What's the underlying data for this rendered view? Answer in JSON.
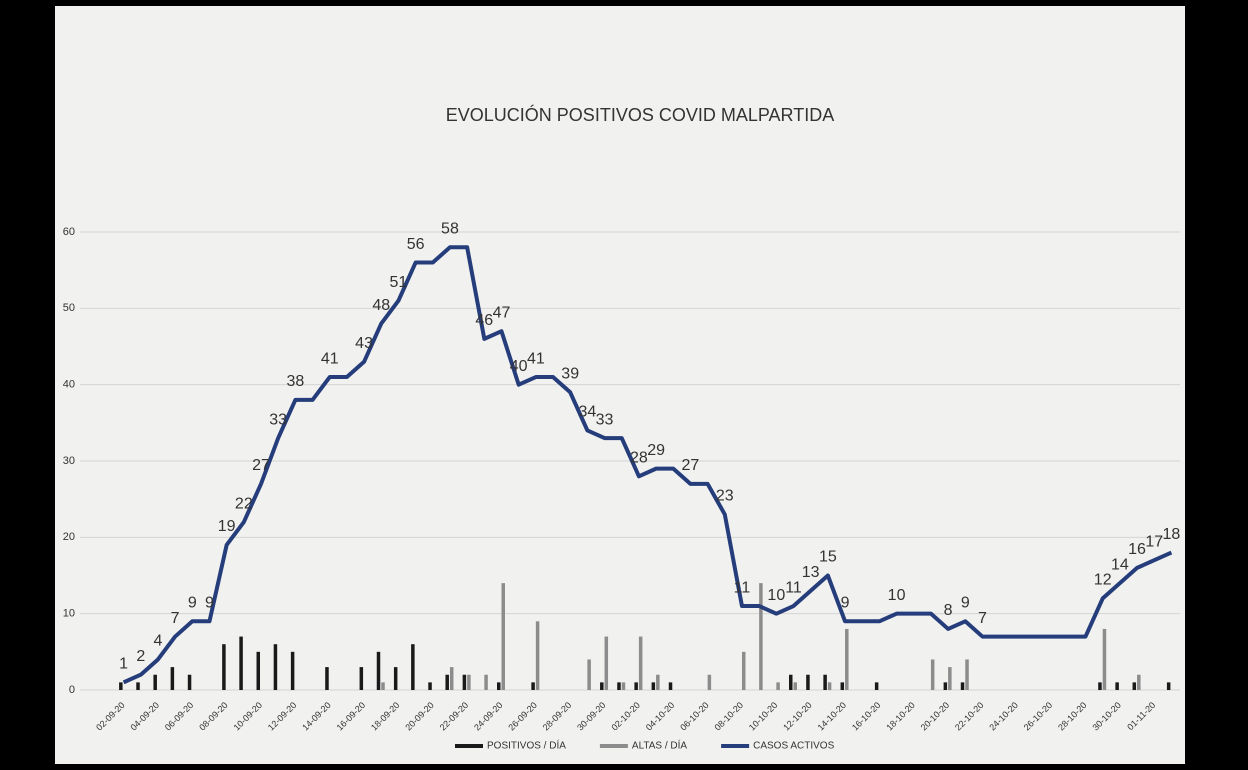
{
  "chart_data": {
    "type": "bar-line",
    "title": "EVOLUCIÓN POSITIVOS COVID MALPARTIDA",
    "categories": [
      "02-09-20",
      null,
      "04-09-20",
      null,
      "06-09-20",
      null,
      "08-09-20",
      null,
      "10-09-20",
      null,
      "12-09-20",
      null,
      "14-09-20",
      null,
      "16-09-20",
      null,
      "18-09-20",
      null,
      "20-09-20",
      null,
      "22-09-20",
      null,
      "24-09-20",
      null,
      "26-09-20",
      null,
      "28-09-20",
      null,
      "30-09-20",
      null,
      "02-10-20",
      null,
      "04-10-20",
      null,
      "06-10-20",
      null,
      "08-10-20",
      null,
      "10-10-20",
      null,
      "12-10-20",
      null,
      "14-10-20",
      null,
      "16-10-20",
      null,
      "18-10-20",
      null,
      "20-10-20",
      null,
      "22-10-20",
      null,
      "24-10-20",
      null,
      "26-10-20",
      null,
      "28-10-20",
      null,
      "30-10-20",
      null,
      "01-11-20",
      null
    ],
    "series": [
      {
        "name": "POSITIVOS / DÍA",
        "kind": "bar",
        "color": "#1a1a1a",
        "values": [
          1,
          1,
          2,
          3,
          2,
          0,
          6,
          7,
          5,
          6,
          5,
          0,
          3,
          0,
          3,
          5,
          3,
          6,
          1,
          2,
          2,
          0,
          1,
          0,
          1,
          0,
          0,
          0,
          1,
          1,
          1,
          1,
          1,
          0,
          0,
          0,
          0,
          0,
          0,
          2,
          2,
          2,
          1,
          0,
          1,
          0,
          0,
          0,
          1,
          1,
          0,
          0,
          0,
          0,
          0,
          0,
          0,
          1,
          1,
          1,
          0,
          1
        ]
      },
      {
        "name": "ALTAS / DÍA",
        "kind": "bar",
        "color": "#8c8c8c",
        "values": [
          0,
          0,
          0,
          0,
          0,
          0,
          0,
          0,
          0,
          0,
          0,
          0,
          0,
          0,
          0,
          1,
          0,
          0,
          0,
          3,
          2,
          2,
          14,
          0,
          9,
          0,
          0,
          4,
          7,
          1,
          7,
          2,
          0,
          0,
          2,
          0,
          5,
          14,
          1,
          1,
          0,
          1,
          8,
          0,
          0,
          0,
          0,
          4,
          3,
          4,
          0,
          0,
          0,
          0,
          0,
          0,
          0,
          8,
          0,
          2,
          0,
          0
        ]
      },
      {
        "name": "CASOS ACTIVOS",
        "kind": "line",
        "color": "#253d7a",
        "values": [
          1,
          2,
          4,
          7,
          9,
          9,
          19,
          22,
          27,
          33,
          38,
          38,
          41,
          41,
          43,
          48,
          51,
          56,
          56,
          58,
          58,
          46,
          47,
          40,
          41,
          41,
          39,
          34,
          33,
          33,
          28,
          29,
          29,
          27,
          27,
          23,
          11,
          11,
          10,
          11,
          13,
          15,
          9,
          9,
          9,
          10,
          10,
          10,
          8,
          9,
          7,
          7,
          7,
          7,
          7,
          7,
          7,
          12,
          14,
          16,
          17,
          18
        ]
      }
    ],
    "ylim": [
      0,
      60
    ],
    "yticks": [
      0,
      10,
      20,
      30,
      40,
      50,
      60
    ],
    "grid": true,
    "legend": "bottom"
  }
}
